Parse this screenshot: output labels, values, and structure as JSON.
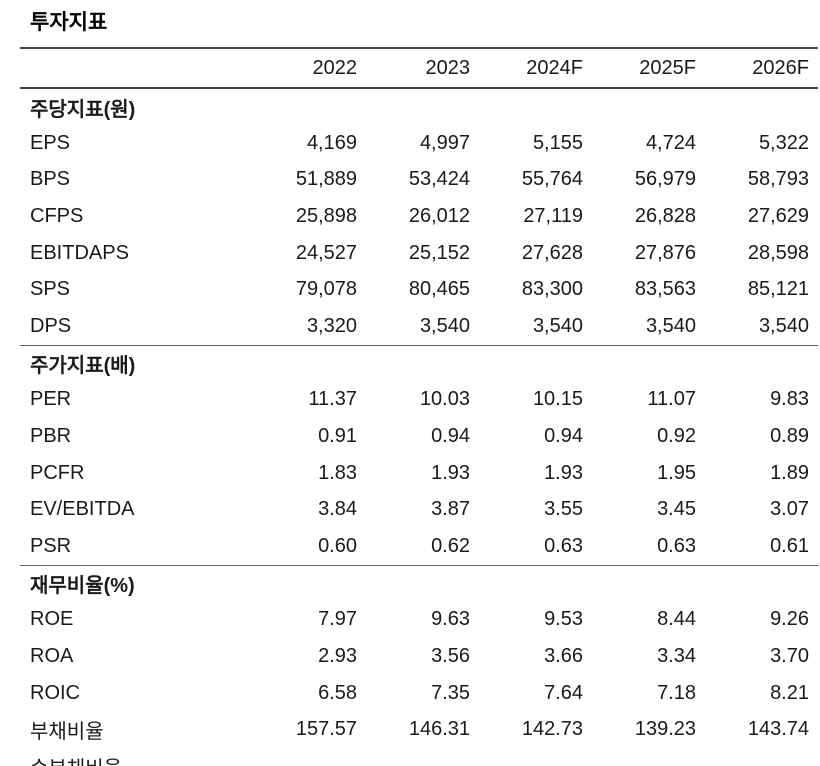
{
  "title": "투자지표",
  "colors": {
    "text": "#1a1a1a",
    "rule_heavy": "#4a4a4a",
    "rule_light": "#5f5f5f",
    "background": "#ffffff"
  },
  "table": {
    "year_headers": [
      "2022",
      "2023",
      "2024F",
      "2025F",
      "2026F"
    ],
    "sections": [
      {
        "header": "주당지표(원)",
        "rows": [
          {
            "label": "EPS",
            "values": [
              "4,169",
              "4,997",
              "5,155",
              "4,724",
              "5,322"
            ]
          },
          {
            "label": "BPS",
            "values": [
              "51,889",
              "53,424",
              "55,764",
              "56,979",
              "58,793"
            ]
          },
          {
            "label": "CFPS",
            "values": [
              "25,898",
              "26,012",
              "27,119",
              "26,828",
              "27,629"
            ]
          },
          {
            "label": "EBITDAPS",
            "values": [
              "24,527",
              "25,152",
              "27,628",
              "27,876",
              "28,598"
            ]
          },
          {
            "label": "SPS",
            "values": [
              "79,078",
              "80,465",
              "83,300",
              "83,563",
              "85,121"
            ]
          },
          {
            "label": "DPS",
            "values": [
              "3,320",
              "3,540",
              "3,540",
              "3,540",
              "3,540"
            ]
          }
        ]
      },
      {
        "header": "주가지표(배)",
        "rows": [
          {
            "label": "PER",
            "values": [
              "11.37",
              "10.03",
              "10.15",
              "11.07",
              "9.83"
            ]
          },
          {
            "label": "PBR",
            "values": [
              "0.91",
              "0.94",
              "0.94",
              "0.92",
              "0.89"
            ]
          },
          {
            "label": "PCFR",
            "values": [
              "1.83",
              "1.93",
              "1.93",
              "1.95",
              "1.89"
            ]
          },
          {
            "label": "EV/EBITDA",
            "values": [
              "3.84",
              "3.87",
              "3.55",
              "3.45",
              "3.07"
            ]
          },
          {
            "label": "PSR",
            "values": [
              "0.60",
              "0.62",
              "0.63",
              "0.63",
              "0.61"
            ]
          }
        ]
      },
      {
        "header": "재무비율(%)",
        "rows": [
          {
            "label": "ROE",
            "values": [
              "7.97",
              "9.63",
              "9.53",
              "8.44",
              "9.26"
            ]
          },
          {
            "label": "ROA",
            "values": [
              "2.93",
              "3.56",
              "3.66",
              "3.34",
              "3.70"
            ]
          },
          {
            "label": "ROIC",
            "values": [
              "6.58",
              "7.35",
              "7.64",
              "7.18",
              "8.21"
            ]
          },
          {
            "label": "부채비율",
            "values": [
              "157.57",
              "146.31",
              "142.73",
              "139.23",
              "143.74"
            ]
          },
          {
            "label": "순부채비율",
            "values": [
              "",
              "",
              "",
              "",
              ""
            ]
          }
        ]
      }
    ]
  }
}
